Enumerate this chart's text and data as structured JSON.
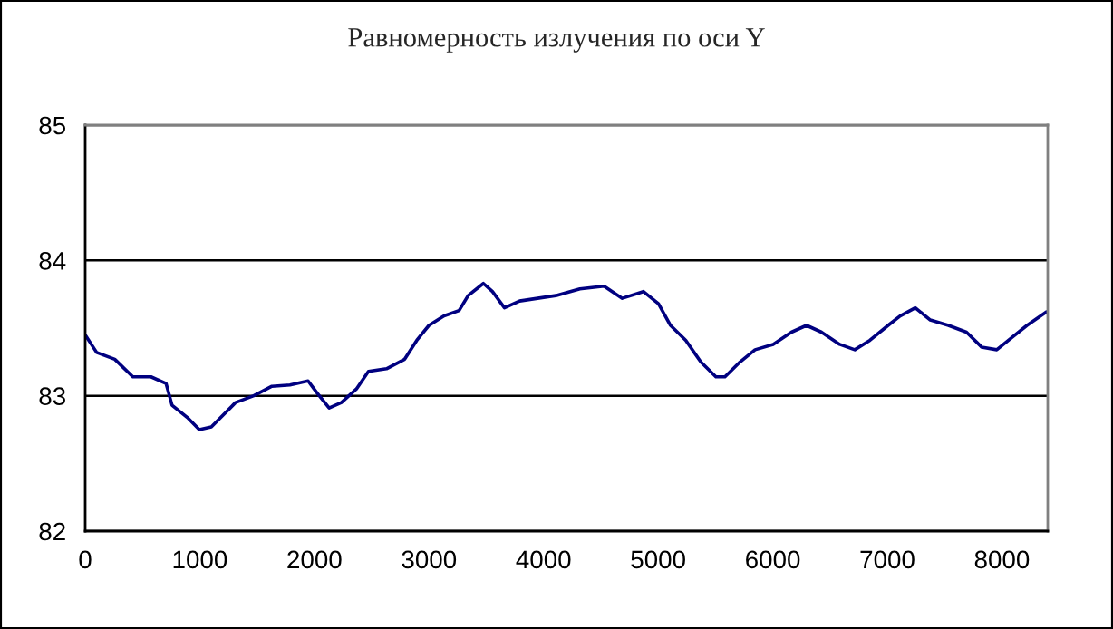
{
  "chart_data": {
    "type": "line",
    "title": "Равномерность излучения по оси Y",
    "x": [
      0,
      100,
      258,
      416,
      574,
      706,
      758,
      891,
      996,
      1101,
      1207,
      1312,
      1471,
      1629,
      1787,
      1945,
      2024,
      2129,
      2236,
      2367,
      2472,
      2630,
      2788,
      2894,
      3000,
      3132,
      3263,
      3342,
      3475,
      3554,
      3659,
      3791,
      3949,
      4107,
      4317,
      4528,
      4687,
      4871,
      5003,
      5108,
      5241,
      5372,
      5504,
      5583,
      5715,
      5846,
      6004,
      6163,
      6295,
      6426,
      6584,
      6716,
      6848,
      7007,
      7112,
      7244,
      7375,
      7533,
      7691,
      7823,
      7955,
      8087,
      8219,
      8390
    ],
    "series": [
      {
        "color": "#000080",
        "values": [
          83.45,
          83.32,
          83.27,
          83.14,
          83.14,
          83.09,
          82.93,
          82.84,
          82.75,
          82.77,
          82.86,
          82.95,
          83.0,
          83.07,
          83.08,
          83.11,
          83.02,
          82.91,
          82.95,
          83.05,
          83.18,
          83.2,
          83.27,
          83.41,
          83.52,
          83.59,
          83.63,
          83.74,
          83.83,
          83.77,
          83.65,
          83.7,
          83.72,
          83.74,
          83.79,
          83.81,
          83.72,
          83.77,
          83.68,
          83.52,
          83.41,
          83.25,
          83.14,
          83.14,
          83.25,
          83.34,
          83.38,
          83.47,
          83.52,
          83.47,
          83.38,
          83.34,
          83.41,
          83.52,
          83.59,
          83.65,
          83.56,
          83.52,
          83.47,
          83.36,
          83.34,
          83.43,
          83.52,
          83.62
        ]
      }
    ],
    "xlim": [
      0,
      8400
    ],
    "xticks": [
      0,
      1000,
      2000,
      3000,
      4000,
      5000,
      6000,
      7000,
      8000
    ],
    "ylim": [
      82,
      85
    ],
    "yticks": [
      82,
      83,
      84,
      85
    ],
    "grid": "y",
    "marker": "none",
    "line_style": "solid",
    "legend": false
  }
}
